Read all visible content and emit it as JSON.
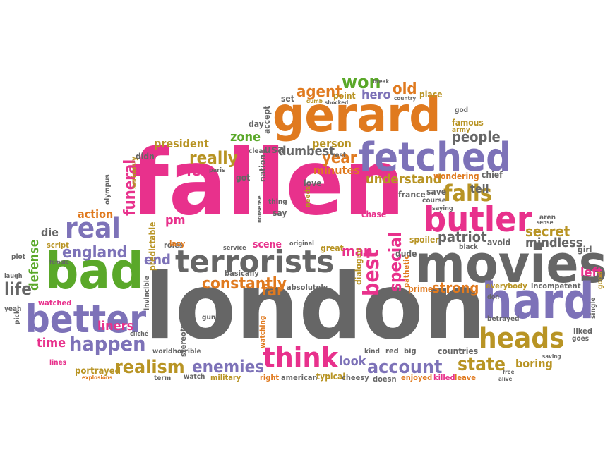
{
  "palette": {
    "pink": "#e8318c",
    "gray": "#666666",
    "green": "#5aa829",
    "orange": "#e07a1f",
    "purple": "#7d72b8",
    "olive": "#b89424",
    "pink_label": "pink",
    "gray_label": "gray"
  },
  "words": [
    {
      "text": "fallen",
      "color": "pink"
    },
    {
      "text": "london",
      "color": "gray"
    },
    {
      "text": "gerard",
      "color": "orange"
    },
    {
      "text": "movies",
      "color": "gray"
    },
    {
      "text": "bad",
      "color": "green"
    },
    {
      "text": "terrorists",
      "color": "gray"
    },
    {
      "text": "hard",
      "color": "purple"
    },
    {
      "text": "fetched",
      "color": "purple"
    },
    {
      "text": "better",
      "color": "purple"
    },
    {
      "text": "butler",
      "color": "pink"
    },
    {
      "text": "real",
      "color": "purple"
    },
    {
      "text": "think",
      "color": "pink"
    },
    {
      "text": "heads",
      "color": "olive"
    },
    {
      "text": "happen",
      "color": "purple"
    },
    {
      "text": "realism",
      "color": "olive"
    },
    {
      "text": "enemies",
      "color": "purple"
    },
    {
      "text": "account",
      "color": "purple"
    },
    {
      "text": "state",
      "color": "olive"
    },
    {
      "text": "falls",
      "color": "olive"
    },
    {
      "text": "england",
      "color": "purple"
    },
    {
      "text": "life",
      "color": "gray"
    },
    {
      "text": "best",
      "color": "pink"
    },
    {
      "text": "special",
      "color": "pink"
    },
    {
      "text": "really",
      "color": "olive"
    },
    {
      "text": "funeral",
      "color": "pink"
    },
    {
      "text": "won",
      "color": "green"
    },
    {
      "text": "agent",
      "color": "orange"
    },
    {
      "text": "old",
      "color": "orange"
    },
    {
      "text": "constantly",
      "color": "orange"
    },
    {
      "text": "patriot",
      "color": "gray"
    },
    {
      "text": "secret",
      "color": "olive"
    },
    {
      "text": "mindless",
      "color": "gray"
    },
    {
      "text": "strong",
      "color": "orange"
    },
    {
      "text": "understand",
      "color": "olive"
    },
    {
      "text": "year",
      "color": "orange"
    },
    {
      "text": "hero",
      "color": "purple"
    },
    {
      "text": "people",
      "color": "gray"
    },
    {
      "text": "zone",
      "color": "green"
    },
    {
      "text": "defense",
      "color": "green"
    },
    {
      "text": "liners",
      "color": "pink"
    },
    {
      "text": "boring",
      "color": "olive"
    },
    {
      "text": "far",
      "color": "orange"
    },
    {
      "text": "end",
      "color": "purple"
    },
    {
      "text": "man",
      "color": "pink"
    },
    {
      "text": "felt",
      "color": "pink"
    },
    {
      "text": "time",
      "color": "pink"
    },
    {
      "text": "die",
      "color": "gray"
    },
    {
      "text": "action",
      "color": "orange"
    },
    {
      "text": "president",
      "color": "olive"
    },
    {
      "text": "dumbest",
      "color": "gray"
    },
    {
      "text": "person",
      "color": "olive"
    },
    {
      "text": "usa",
      "color": "gray"
    },
    {
      "text": "minutes",
      "color": "orange"
    },
    {
      "text": "pm",
      "color": "pink"
    },
    {
      "text": "look",
      "color": "purple"
    },
    {
      "text": "left",
      "color": "pink"
    },
    {
      "text": "tell",
      "color": "gray"
    },
    {
      "text": "chase",
      "color": "pink"
    },
    {
      "text": "set",
      "color": "gray"
    },
    {
      "text": "point",
      "color": "olive"
    },
    {
      "text": "place",
      "color": "olive"
    },
    {
      "text": "famous",
      "color": "olive"
    },
    {
      "text": "god",
      "color": "gray"
    },
    {
      "text": "army",
      "color": "olive"
    },
    {
      "text": "break",
      "color": "gray"
    },
    {
      "text": "dumb",
      "color": "olive"
    },
    {
      "text": "shocked",
      "color": "gray"
    },
    {
      "text": "country",
      "color": "gray"
    },
    {
      "text": "accept",
      "color": "gray"
    },
    {
      "text": "day",
      "color": "gray"
    },
    {
      "text": "didn",
      "color": "gray"
    },
    {
      "text": "clear",
      "color": "gray"
    },
    {
      "text": "rest",
      "color": "gray"
    },
    {
      "text": "paris",
      "color": "gray"
    },
    {
      "text": "got",
      "color": "gray"
    },
    {
      "text": "nation",
      "color": "gray"
    },
    {
      "text": "love",
      "color": "gray"
    },
    {
      "text": "wondering",
      "color": "orange"
    },
    {
      "text": "chief",
      "color": "gray"
    },
    {
      "text": "france",
      "color": "gray"
    },
    {
      "text": "save",
      "color": "gray"
    },
    {
      "text": "course",
      "color": "gray"
    },
    {
      "text": "saying",
      "color": "gray"
    },
    {
      "text": "seriously",
      "color": "olive"
    },
    {
      "text": "olympus",
      "color": "gray"
    },
    {
      "text": "thing",
      "color": "gray"
    },
    {
      "text": "needs",
      "color": "olive"
    },
    {
      "text": "nonsense",
      "color": "gray"
    },
    {
      "text": "say",
      "color": "gray"
    },
    {
      "text": "predictable",
      "color": "olive"
    },
    {
      "text": "script",
      "color": "olive"
    },
    {
      "text": "roles",
      "color": "gray"
    },
    {
      "text": "lazy",
      "color": "orange"
    },
    {
      "text": "original",
      "color": "gray"
    },
    {
      "text": "great",
      "color": "olive"
    },
    {
      "text": "scene",
      "color": "pink"
    },
    {
      "text": "service",
      "color": "gray"
    },
    {
      "text": "avoid",
      "color": "gray"
    },
    {
      "text": "spoiler",
      "color": "olive"
    },
    {
      "text": "dude",
      "color": "gray"
    },
    {
      "text": "aren",
      "color": "gray"
    },
    {
      "text": "black",
      "color": "gray"
    },
    {
      "text": "sense",
      "color": "gray"
    },
    {
      "text": "girl",
      "color": "gray"
    },
    {
      "text": "plot",
      "color": "gray"
    },
    {
      "text": "female",
      "color": "gray"
    },
    {
      "text": "laugh",
      "color": "gray"
    },
    {
      "text": "basically",
      "color": "gray"
    },
    {
      "text": "absolutely",
      "color": "gray"
    },
    {
      "text": "dialogue",
      "color": "olive"
    },
    {
      "text": "pathetic",
      "color": "orange"
    },
    {
      "text": "prime",
      "color": "orange"
    },
    {
      "text": "everybody",
      "color": "olive"
    },
    {
      "text": "incompetent",
      "color": "gray"
    },
    {
      "text": "good",
      "color": "olive"
    },
    {
      "text": "single",
      "color": "gray"
    },
    {
      "text": "watched",
      "color": "pink"
    },
    {
      "text": "yeah",
      "color": "gray"
    },
    {
      "text": "pick",
      "color": "gray"
    },
    {
      "text": "invincible",
      "color": "gray"
    },
    {
      "text": "cliché",
      "color": "gray"
    },
    {
      "text": "stereotypes",
      "color": "gray"
    },
    {
      "text": "gun",
      "color": "gray"
    },
    {
      "text": "watching",
      "color": "orange"
    },
    {
      "text": "worldhorrible",
      "color": "gray"
    },
    {
      "text": "betrayed",
      "color": "gray"
    },
    {
      "text": "liked",
      "color": "gray"
    },
    {
      "text": "goes",
      "color": "gray"
    },
    {
      "text": "countries",
      "color": "gray"
    },
    {
      "text": "saving",
      "color": "gray"
    },
    {
      "text": "kind",
      "color": "gray"
    },
    {
      "text": "red",
      "color": "gray"
    },
    {
      "text": "big",
      "color": "gray"
    },
    {
      "text": "lines",
      "color": "pink"
    },
    {
      "text": "portrayed",
      "color": "olive"
    },
    {
      "text": "explosions",
      "color": "orange"
    },
    {
      "text": "term",
      "color": "gray"
    },
    {
      "text": "watch",
      "color": "gray"
    },
    {
      "text": "military",
      "color": "olive"
    },
    {
      "text": "right",
      "color": "orange"
    },
    {
      "text": "american",
      "color": "gray"
    },
    {
      "text": "typical",
      "color": "olive"
    },
    {
      "text": "cheesy",
      "color": "gray"
    },
    {
      "text": "doesn",
      "color": "gray"
    },
    {
      "text": "enjoyed",
      "color": "orange"
    },
    {
      "text": "killed",
      "color": "pink"
    },
    {
      "text": "leave",
      "color": "orange"
    },
    {
      "text": "free",
      "color": "gray"
    },
    {
      "text": "alive",
      "color": "gray"
    },
    {
      "text": "don",
      "color": "gray"
    }
  ]
}
